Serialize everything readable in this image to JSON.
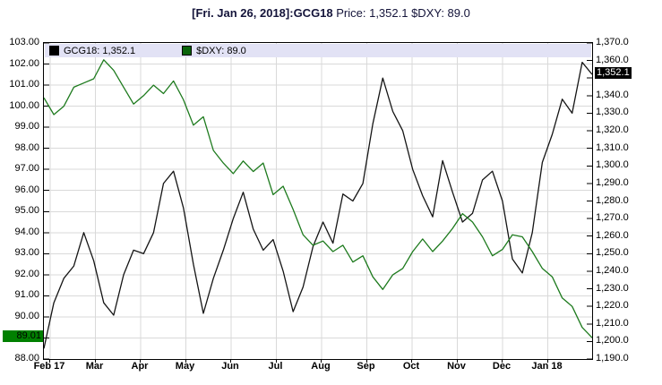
{
  "title": {
    "bold_part": "[Fri. Jan 26, 2018]:GCG18",
    "regular_part": " Price: 1,352.1 $DXY: 89.0"
  },
  "legend": {
    "items": [
      {
        "label": "GCG18: 1,352.1",
        "swatch_color": "#000000"
      },
      {
        "label": "$DXY: 89.0",
        "swatch_color": "#0a640a"
      }
    ]
  },
  "colors": {
    "gcg18_line": "#141414",
    "dxy_line": "#1d7a1d",
    "gridline": "#d9d9d9",
    "legend_band_bg": "#e2e2f5",
    "title_text": "#14143a",
    "right_badge_bg": "#000000",
    "right_badge_text": "#ffffff",
    "left_badge_bg": "#008000",
    "left_badge_text": "#000000"
  },
  "chart_data": {
    "type": "line",
    "title": "[Fri. Jan 26, 2018]:GCG18 Price: 1,352.1 $DXY: 89.0",
    "grid": "on",
    "legend_position": "top-band",
    "x_axis": {
      "months": [
        "Feb 17",
        "Mar",
        "Apr",
        "May",
        "Jun",
        "Jul",
        "Aug",
        "Sep",
        "Oct",
        "Nov",
        "Dec",
        "Jan 18"
      ]
    },
    "left_axis": {
      "series": "$DXY",
      "min": 88.0,
      "max": 103.0,
      "step": 1.0,
      "ticks": [
        {
          "value": 103,
          "label": "103.00"
        },
        {
          "value": 102,
          "label": "102.00"
        },
        {
          "value": 101,
          "label": "101.00"
        },
        {
          "value": 100,
          "label": "100.00"
        },
        {
          "value": 99,
          "label": "99.00"
        },
        {
          "value": 98,
          "label": "98.00"
        },
        {
          "value": 97,
          "label": "97.00"
        },
        {
          "value": 96,
          "label": "96.00"
        },
        {
          "value": 95,
          "label": "95.00"
        },
        {
          "value": 94,
          "label": "94.00"
        },
        {
          "value": 93,
          "label": "93.00"
        },
        {
          "value": 92,
          "label": "92.00"
        },
        {
          "value": 91,
          "label": "91.00"
        },
        {
          "value": 90,
          "label": "90.00"
        },
        {
          "value": 88,
          "label": "88.00"
        }
      ],
      "badge": {
        "text": "89.01",
        "value": 89.01
      }
    },
    "right_axis": {
      "series": "GCG18",
      "min": 1190.0,
      "max": 1370.0,
      "step": 10.0,
      "ticks": [
        {
          "value": 1370,
          "label": "1,370.0"
        },
        {
          "value": 1360,
          "label": "1,360.0"
        },
        {
          "value": 1340,
          "label": "1,340.0"
        },
        {
          "value": 1330,
          "label": "1,330.0"
        },
        {
          "value": 1320,
          "label": "1,320.0"
        },
        {
          "value": 1310,
          "label": "1,310.0"
        },
        {
          "value": 1300,
          "label": "1,300.0"
        },
        {
          "value": 1290,
          "label": "1,290.0"
        },
        {
          "value": 1280,
          "label": "1,280.0"
        },
        {
          "value": 1270,
          "label": "1,270.0"
        },
        {
          "value": 1260,
          "label": "1,260.0"
        },
        {
          "value": 1250,
          "label": "1,250.0"
        },
        {
          "value": 1240,
          "label": "1,240.0"
        },
        {
          "value": 1230,
          "label": "1,230.0"
        },
        {
          "value": 1220,
          "label": "1,220.0"
        },
        {
          "value": 1210,
          "label": "1,210.0"
        },
        {
          "value": 1200,
          "label": "1,200.0"
        },
        {
          "value": 1190,
          "label": "1,190.0"
        }
      ],
      "badge": {
        "text": "1,352.1",
        "value": 1352.1
      }
    },
    "series": [
      {
        "name": "GCG18",
        "axis": "right",
        "color": "#141414",
        "last_value": 1352.1,
        "values": [
          1196,
          1222,
          1236,
          1243,
          1262,
          1246,
          1222,
          1215,
          1238,
          1252,
          1250,
          1262,
          1290,
          1297,
          1276,
          1244,
          1216,
          1236,
          1252,
          1270,
          1285,
          1264,
          1252,
          1258,
          1240,
          1217,
          1231,
          1254,
          1268,
          1256,
          1284,
          1280,
          1290,
          1324,
          1350,
          1331,
          1320,
          1298,
          1283,
          1271,
          1303,
          1285,
          1268,
          1273,
          1292,
          1297,
          1280,
          1247,
          1239,
          1262,
          1302,
          1318,
          1338,
          1330,
          1359,
          1352.1
        ]
      },
      {
        "name": "$DXY",
        "axis": "left",
        "color": "#1d7a1d",
        "last_value": 89.01,
        "values": [
          100.4,
          99.6,
          100.0,
          100.9,
          101.1,
          101.3,
          102.2,
          101.7,
          100.9,
          100.1,
          100.5,
          101.0,
          100.6,
          101.2,
          100.3,
          99.1,
          99.5,
          97.9,
          97.3,
          96.8,
          97.4,
          96.9,
          97.3,
          95.8,
          96.2,
          95.1,
          93.9,
          93.4,
          93.6,
          93.1,
          93.4,
          92.6,
          92.9,
          91.9,
          91.3,
          92.0,
          92.3,
          93.1,
          93.7,
          93.1,
          93.6,
          94.2,
          94.9,
          94.5,
          93.8,
          92.9,
          93.2,
          93.9,
          93.8,
          93.1,
          92.3,
          91.9,
          90.9,
          90.5,
          89.5,
          89.01
        ]
      }
    ]
  }
}
